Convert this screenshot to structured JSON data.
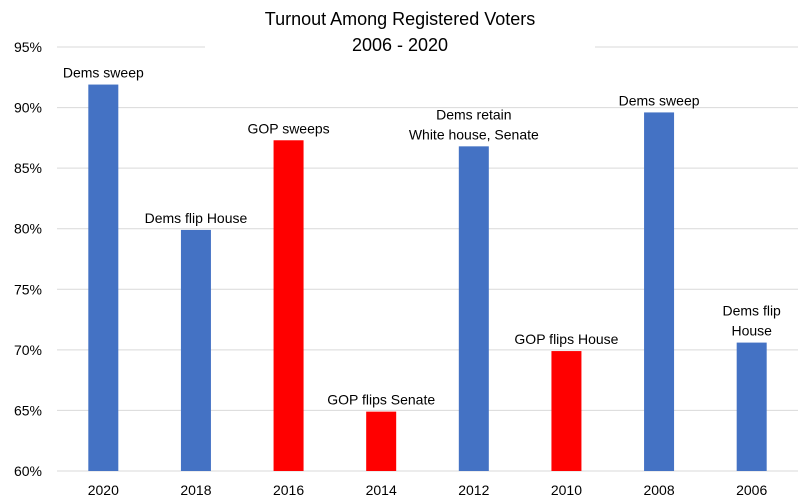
{
  "chart_data": {
    "type": "bar",
    "title": [
      "Turnout Among Registered Voters",
      "2006 - 2020"
    ],
    "xlabel": "",
    "ylabel": "",
    "ylim": [
      60,
      95
    ],
    "yticks": [
      "60%",
      "65%",
      "70%",
      "75%",
      "80%",
      "85%",
      "90%",
      "95%"
    ],
    "yticks_values": [
      60,
      65,
      70,
      75,
      80,
      85,
      90,
      95
    ],
    "grid": true,
    "legend": "none",
    "categories": [
      "2020",
      "2018",
      "2016",
      "2014",
      "2012",
      "2010",
      "2008",
      "2006"
    ],
    "values": [
      91.9,
      79.9,
      87.3,
      64.9,
      86.8,
      69.9,
      89.6,
      70.6
    ],
    "bar_colors": [
      "#4472C4",
      "#4472C4",
      "#FF0000",
      "#FF0000",
      "#4472C4",
      "#FF0000",
      "#4472C4",
      "#4472C4"
    ],
    "annotations": [
      [
        "Dems sweep"
      ],
      [
        "Dems flip House"
      ],
      [
        "GOP sweeps"
      ],
      [
        "GOP flips Senate"
      ],
      [
        "Dems retain",
        "White house, Senate"
      ],
      [
        "GOP flips House"
      ],
      [
        "Dems sweep"
      ],
      [
        "Dems flip",
        "House"
      ]
    ]
  },
  "colors": {
    "dem": "#4472C4",
    "gop": "#FF0000",
    "grid": "#D9D9D9"
  }
}
